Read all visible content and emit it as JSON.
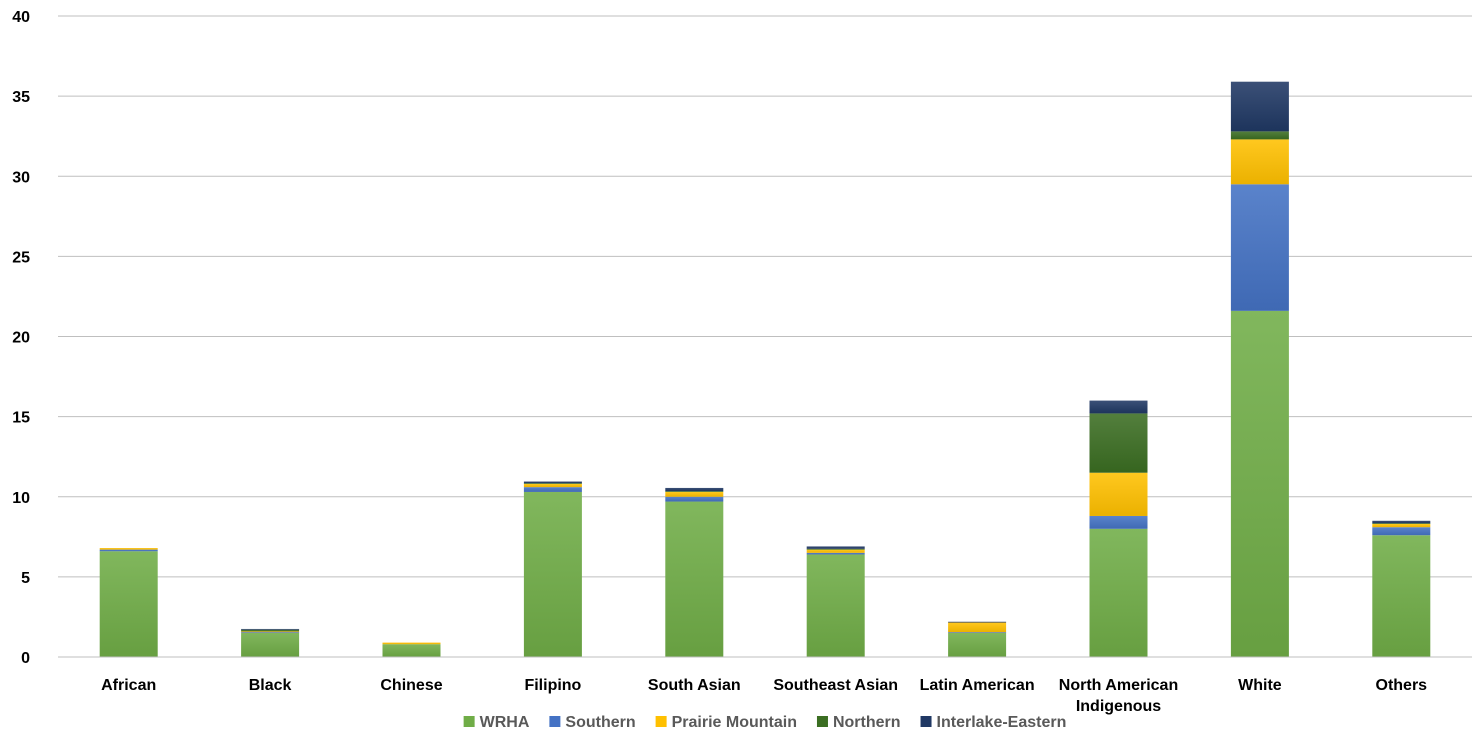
{
  "chart_data": {
    "type": "bar",
    "stacked": true,
    "title": "",
    "xlabel": "",
    "ylabel": "",
    "ylim": [
      0,
      40
    ],
    "yticks": [
      0,
      5,
      10,
      15,
      20,
      25,
      30,
      35,
      40
    ],
    "grid": true,
    "legend_position": "bottom",
    "categories": [
      "African",
      "Black",
      "Chinese",
      "Filipino",
      "South Asian",
      "Southeast Asian",
      "Latin American",
      "North American Indigenous",
      "White",
      "Others"
    ],
    "category_lines": [
      [
        "African"
      ],
      [
        "Black"
      ],
      [
        "Chinese"
      ],
      [
        "Filipino"
      ],
      [
        "South Asian"
      ],
      [
        "Southeast Asian"
      ],
      [
        "Latin American"
      ],
      [
        "North American",
        "Indigenous"
      ],
      [
        "White"
      ],
      [
        "Others"
      ]
    ],
    "series": [
      {
        "name": "WRHA",
        "color": "#70AD47",
        "values": [
          6.6,
          1.5,
          0.8,
          10.3,
          9.7,
          6.4,
          1.5,
          8.0,
          21.6,
          7.6
        ]
      },
      {
        "name": "Southern",
        "color": "#4472C4",
        "values": [
          0.1,
          0.05,
          0.0,
          0.3,
          0.3,
          0.1,
          0.05,
          0.8,
          7.9,
          0.5
        ]
      },
      {
        "name": "Prairie Mountain",
        "color": "#FFC000",
        "values": [
          0.1,
          0.05,
          0.1,
          0.2,
          0.3,
          0.2,
          0.6,
          2.7,
          2.8,
          0.2
        ]
      },
      {
        "name": "Northern",
        "color": "#3B6E22",
        "values": [
          0.0,
          0.1,
          0.0,
          0.05,
          0.05,
          0.05,
          0.0,
          3.7,
          0.5,
          0.05
        ]
      },
      {
        "name": "Interlake-Eastern",
        "color": "#203864",
        "values": [
          0.0,
          0.05,
          0.0,
          0.1,
          0.2,
          0.15,
          0.05,
          0.8,
          3.1,
          0.15
        ]
      }
    ]
  }
}
